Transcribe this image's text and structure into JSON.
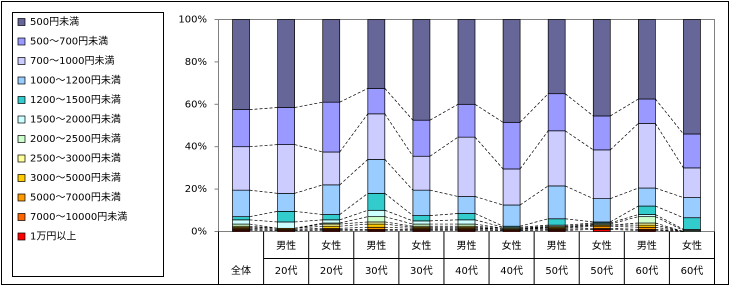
{
  "chart_data": {
    "type": "stacked_bar",
    "categories": [
      [
        "全体"
      ],
      [
        "男性",
        "20代"
      ],
      [
        "女性",
        "20代"
      ],
      [
        "男性",
        "30代"
      ],
      [
        "女性",
        "30代"
      ],
      [
        "男性",
        "40代"
      ],
      [
        "女性",
        "40代"
      ],
      [
        "男性",
        "50代"
      ],
      [
        "女性",
        "50代"
      ],
      [
        "男性",
        "60代"
      ],
      [
        "女性",
        "60代"
      ]
    ],
    "ylim": [
      0,
      100
    ],
    "yticks": [
      {
        "value": 0,
        "label": "0%"
      },
      {
        "value": 20,
        "label": "20%"
      },
      {
        "value": 40,
        "label": "40%"
      },
      {
        "value": 60,
        "label": "60%"
      },
      {
        "value": 80,
        "label": "80%"
      },
      {
        "value": 100,
        "label": "100%"
      }
    ],
    "series": [
      {
        "name": "1万円以上",
        "color": "#ff0000",
        "values": [
          0.5,
          0.5,
          0.5,
          0.5,
          0.5,
          0.5,
          0.5,
          0.5,
          1,
          0.5,
          0
        ]
      },
      {
        "name": "7000～10000円未満",
        "color": "#ff6600",
        "values": [
          0.5,
          0,
          0.5,
          0.5,
          0.5,
          0.5,
          0,
          0.5,
          0.5,
          0.5,
          0
        ]
      },
      {
        "name": "5000～7000円未満",
        "color": "#ff9900",
        "values": [
          0.5,
          0.5,
          0.5,
          1,
          0.5,
          0.5,
          0.5,
          0.5,
          1,
          1,
          0
        ]
      },
      {
        "name": "3000～5000円未満",
        "color": "#ffcc00",
        "values": [
          0.5,
          0.5,
          1,
          1.5,
          0.5,
          0.5,
          0,
          0.5,
          0.5,
          1,
          0
        ]
      },
      {
        "name": "2500～3000円未満",
        "color": "#ffff99",
        "values": [
          0.5,
          0,
          1,
          1,
          0.5,
          0.5,
          0.5,
          0,
          0,
          1,
          0
        ]
      },
      {
        "name": "2000～2500円未満",
        "color": "#ccffcc",
        "values": [
          1,
          0,
          0.5,
          2.5,
          1,
          1,
          0,
          0.5,
          0.5,
          3,
          0.5
        ]
      },
      {
        "name": "1500～2000円未満",
        "color": "#ccffff",
        "values": [
          2,
          3,
          1.5,
          3,
          1.5,
          2,
          0.5,
          0.5,
          0.5,
          1,
          0.5
        ]
      },
      {
        "name": "1200～1500円未満",
        "color": "#33cccc",
        "values": [
          1.5,
          5,
          2.5,
          8,
          2.5,
          3,
          0.5,
          3,
          0.5,
          4,
          5.5
        ]
      },
      {
        "name": "1000～1200円未満",
        "color": "#99ccff",
        "values": [
          12.5,
          8.5,
          14,
          16,
          12,
          8,
          10,
          15.5,
          11,
          8.5,
          9.5
        ]
      },
      {
        "name": "700～1000円未満",
        "color": "#ccccff",
        "values": [
          20.5,
          23,
          15.5,
          21.5,
          16,
          28,
          17,
          26,
          23,
          30.5,
          14
        ]
      },
      {
        "name": "500～700円未満",
        "color": "#9999ff",
        "values": [
          17.5,
          17.5,
          23.5,
          12,
          17,
          15.5,
          22,
          17.5,
          16,
          11.5,
          16
        ]
      },
      {
        "name": "500円未満",
        "color": "#666699",
        "values": [
          42.5,
          41.5,
          39,
          32.5,
          47.5,
          40,
          48.5,
          35,
          45.5,
          37.5,
          54
        ]
      }
    ]
  }
}
